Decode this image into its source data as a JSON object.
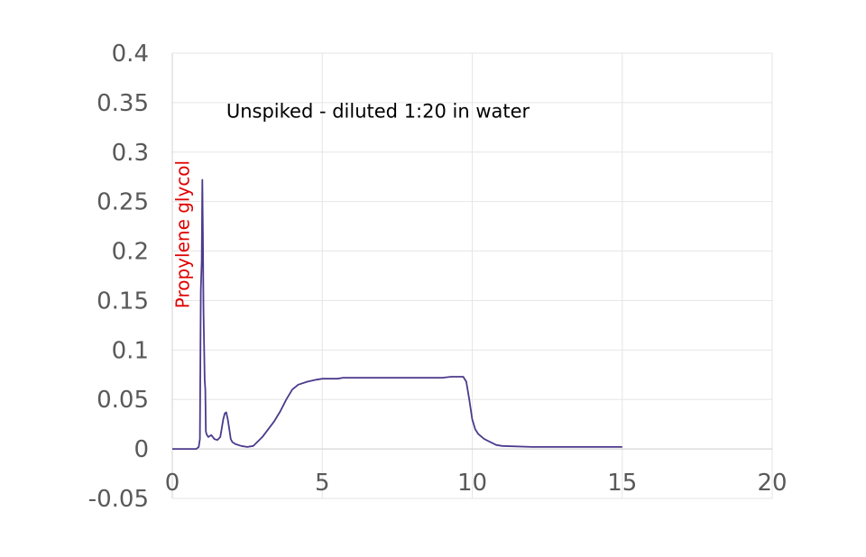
{
  "chart_data": {
    "type": "line",
    "title": "",
    "xlabel": "",
    "ylabel": "",
    "xlim": [
      0,
      20
    ],
    "ylim": [
      -0.05,
      0.4
    ],
    "x_ticks": [
      0,
      5,
      10,
      15,
      20
    ],
    "x_tick_labels": [
      "0",
      "5",
      "10",
      "15",
      "20"
    ],
    "y_ticks": [
      -0.05,
      0,
      0.05,
      0.1,
      0.15,
      0.2,
      0.25,
      0.3,
      0.35,
      0.4
    ],
    "y_tick_labels": [
      "-0.05",
      "0",
      "0.05",
      "0.1",
      "0.15",
      "0.2",
      "0.25",
      "0.3",
      "0.35",
      "0.4"
    ],
    "grid": true,
    "legend": "none",
    "line_color": "#4b3a8c",
    "annotations": [
      {
        "text": "Unspiked - diluted 1:20 in water",
        "x": 1.8,
        "y": 0.335,
        "color": "#000000",
        "rotation": 0
      },
      {
        "text": "Propylene glycol",
        "x": 0.55,
        "y": 0.142,
        "color": "#e00000",
        "rotation": -90
      }
    ],
    "series": [
      {
        "x": [
          0,
          0.8,
          0.88,
          0.92,
          0.95,
          0.98,
          1.0,
          1.02,
          1.04,
          1.08,
          1.1,
          1.12,
          1.14,
          1.18,
          1.2,
          1.3,
          1.4,
          1.5,
          1.6,
          1.7,
          1.75,
          1.8,
          1.85,
          1.9,
          1.95,
          2.0,
          2.1,
          2.3,
          2.5,
          2.7,
          2.8,
          3.0,
          3.2,
          3.4,
          3.6,
          3.8,
          4.0,
          4.2,
          4.5,
          4.8,
          5.0,
          5.3,
          5.5,
          5.7,
          6.0,
          7.0,
          8.0,
          9.0,
          9.3,
          9.5,
          9.7,
          9.8,
          9.9,
          10.0,
          10.1,
          10.2,
          10.4,
          10.6,
          10.8,
          11.0,
          12.0,
          13.0,
          14.0,
          15.0
        ],
        "y": [
          0.0,
          0.0,
          0.002,
          0.01,
          0.16,
          0.19,
          0.272,
          0.22,
          0.14,
          0.07,
          0.06,
          0.018,
          0.015,
          0.013,
          0.012,
          0.014,
          0.01,
          0.009,
          0.012,
          0.03,
          0.036,
          0.037,
          0.03,
          0.02,
          0.01,
          0.007,
          0.005,
          0.003,
          0.002,
          0.003,
          0.006,
          0.012,
          0.02,
          0.028,
          0.038,
          0.05,
          0.06,
          0.065,
          0.068,
          0.07,
          0.071,
          0.071,
          0.071,
          0.072,
          0.072,
          0.072,
          0.072,
          0.072,
          0.073,
          0.073,
          0.073,
          0.068,
          0.05,
          0.03,
          0.02,
          0.015,
          0.01,
          0.007,
          0.004,
          0.003,
          0.002,
          0.002,
          0.002,
          0.002
        ]
      }
    ]
  }
}
